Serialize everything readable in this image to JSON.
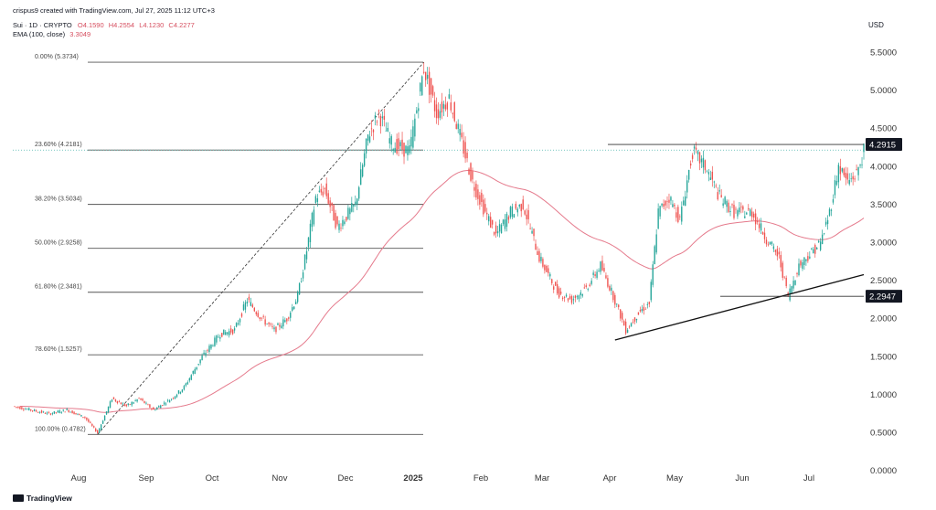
{
  "header": {
    "credit": "crispus9 created with TradingView.com, Jul 27, 2025 11:12 UTC+3",
    "symbol": "Sui · 1D · CRYPTO",
    "o_label": "O",
    "o_value": "4.1590",
    "h_label": "H",
    "h_value": "4.2554",
    "l_label": "L",
    "l_value": "4.1230",
    "c_label": "C",
    "c_value": "4.2277",
    "ema_label": "EMA (100, close)",
    "ema_value": "3.3049"
  },
  "footer": {
    "brand": "TradingView"
  },
  "colors": {
    "up": "#26a69a",
    "down": "#ef5350",
    "ema": "#e57a8c",
    "fib": "#555555",
    "trend": "#111111",
    "price_tag": "#131722"
  },
  "chart_data": {
    "type": "candlestick",
    "currency": "USD",
    "y_ticks": [
      "5.5000",
      "5.0000",
      "4.5000",
      "4.0000",
      "3.5000",
      "3.0000",
      "2.5000",
      "2.0000",
      "1.5000",
      "1.0000",
      "0.5000",
      "0.0000"
    ],
    "x_ticks": [
      "Aug",
      "Sep",
      "Oct",
      "Nov",
      "Dec",
      "2025",
      "Feb",
      "Mar",
      "Apr",
      "May",
      "Jun",
      "Jul"
    ],
    "ylim": [
      0,
      5.9
    ],
    "fib_levels": [
      {
        "label": "0.00% (5.3734)",
        "value": 5.3734
      },
      {
        "label": "23.60% (4.2181)",
        "value": 4.2181
      },
      {
        "label": "38.20% (3.5034)",
        "value": 3.5034
      },
      {
        "label": "50.00% (2.9258)",
        "value": 2.9258
      },
      {
        "label": "61.80% (2.3481)",
        "value": 2.3481
      },
      {
        "label": "78.60% (1.5257)",
        "value": 1.5257
      },
      {
        "label": "100.00% (0.4782)",
        "value": 0.4782
      }
    ],
    "price_tags": [
      {
        "label": "4.2915",
        "value": 4.2915
      },
      {
        "label": "2.2947",
        "value": 2.2947
      }
    ],
    "anchors": [
      {
        "t": 0,
        "v": 0.85
      },
      {
        "t": 10,
        "v": 0.8
      },
      {
        "t": 20,
        "v": 0.75
      },
      {
        "t": 30,
        "v": 0.8
      },
      {
        "t": 40,
        "v": 0.7
      },
      {
        "t": 47,
        "v": 0.5
      },
      {
        "t": 55,
        "v": 0.95
      },
      {
        "t": 63,
        "v": 0.85
      },
      {
        "t": 70,
        "v": 0.95
      },
      {
        "t": 78,
        "v": 0.8
      },
      {
        "t": 88,
        "v": 0.95
      },
      {
        "t": 95,
        "v": 1.1
      },
      {
        "t": 105,
        "v": 1.5
      },
      {
        "t": 115,
        "v": 1.8
      },
      {
        "t": 123,
        "v": 1.85
      },
      {
        "t": 130,
        "v": 2.25
      },
      {
        "t": 138,
        "v": 2.0
      },
      {
        "t": 145,
        "v": 1.85
      },
      {
        "t": 152,
        "v": 2.0
      },
      {
        "t": 158,
        "v": 2.3
      },
      {
        "t": 163,
        "v": 2.9
      },
      {
        "t": 168,
        "v": 3.6
      },
      {
        "t": 173,
        "v": 3.7
      },
      {
        "t": 180,
        "v": 3.2
      },
      {
        "t": 190,
        "v": 3.5
      },
      {
        "t": 197,
        "v": 4.4
      },
      {
        "t": 203,
        "v": 4.7
      },
      {
        "t": 210,
        "v": 4.3
      },
      {
        "t": 220,
        "v": 4.2
      },
      {
        "t": 228,
        "v": 5.3
      },
      {
        "t": 235,
        "v": 4.7
      },
      {
        "t": 242,
        "v": 4.9
      },
      {
        "t": 248,
        "v": 4.4
      },
      {
        "t": 255,
        "v": 3.8
      },
      {
        "t": 262,
        "v": 3.4
      },
      {
        "t": 268,
        "v": 3.1
      },
      {
        "t": 276,
        "v": 3.4
      },
      {
        "t": 283,
        "v": 3.5
      },
      {
        "t": 292,
        "v": 2.8
      },
      {
        "t": 302,
        "v": 2.35
      },
      {
        "t": 310,
        "v": 2.25
      },
      {
        "t": 318,
        "v": 2.4
      },
      {
        "t": 326,
        "v": 2.7
      },
      {
        "t": 333,
        "v": 2.3
      },
      {
        "t": 340,
        "v": 1.85
      },
      {
        "t": 348,
        "v": 2.1
      },
      {
        "t": 353,
        "v": 2.2
      },
      {
        "t": 358,
        "v": 3.4
      },
      {
        "t": 364,
        "v": 3.6
      },
      {
        "t": 370,
        "v": 3.3
      },
      {
        "t": 377,
        "v": 4.2
      },
      {
        "t": 384,
        "v": 4.0
      },
      {
        "t": 392,
        "v": 3.6
      },
      {
        "t": 400,
        "v": 3.4
      },
      {
        "t": 410,
        "v": 3.4
      },
      {
        "t": 418,
        "v": 3.05
      },
      {
        "t": 425,
        "v": 2.8
      },
      {
        "t": 430,
        "v": 2.3
      },
      {
        "t": 436,
        "v": 2.7
      },
      {
        "t": 442,
        "v": 2.85
      },
      {
        "t": 448,
        "v": 3.0
      },
      {
        "t": 453,
        "v": 3.4
      },
      {
        "t": 458,
        "v": 4.0
      },
      {
        "t": 463,
        "v": 3.8
      },
      {
        "t": 468,
        "v": 3.9
      },
      {
        "t": 472,
        "v": 4.2
      }
    ],
    "trendline": {
      "from": {
        "t": 334,
        "v": 1.72
      },
      "to": {
        "t": 472,
        "v": 2.58
      }
    },
    "fib_start": {
      "t": 47,
      "v": 0.4782
    },
    "fib_end": {
      "t": 228,
      "v": 5.3734
    }
  }
}
